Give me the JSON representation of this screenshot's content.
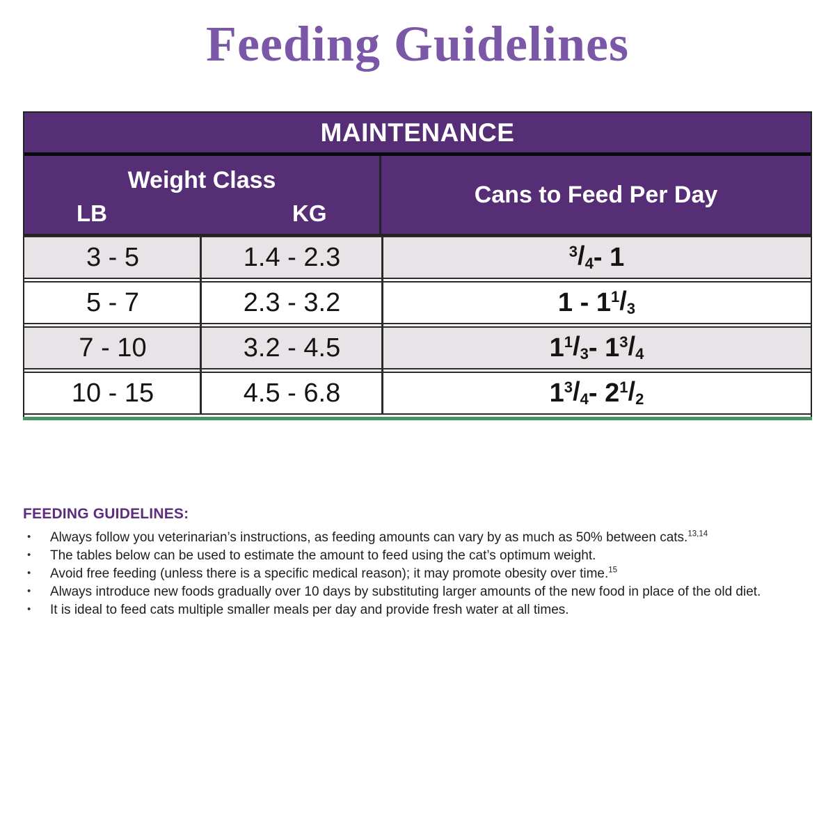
{
  "page": {
    "title": "Feeding Guidelines"
  },
  "colors": {
    "title_purple": "#7b57a8",
    "header_purple": "#552e75",
    "heading_purple": "#5c2d80",
    "row_gray": "#e7e3e7",
    "green_bar": "#469465",
    "border_dark": "#232323"
  },
  "table": {
    "header": "MAINTENANCE",
    "weight_class_label": "Weight Class",
    "lb_label": "LB",
    "kg_label": "KG",
    "cans_label": "Cans to Feed Per Day",
    "rows": [
      {
        "lb": "3 - 5",
        "kg": "1.4 - 2.3",
        "cans": [
          {
            "frac": [
              "3",
              "4"
            ]
          },
          {
            "text": " - 1"
          }
        ]
      },
      {
        "lb": "5 - 7",
        "kg": "2.3 - 3.2",
        "cans": [
          {
            "text": "1 - 1 "
          },
          {
            "frac": [
              "1",
              "3"
            ]
          }
        ]
      },
      {
        "lb": "7 - 10",
        "kg": "3.2 - 4.5",
        "cans": [
          {
            "text": "1 "
          },
          {
            "frac": [
              "1",
              "3"
            ]
          },
          {
            "text": " - 1 "
          },
          {
            "frac": [
              "3",
              "4"
            ]
          }
        ]
      },
      {
        "lb": "10 - 15",
        "kg": "4.5 - 6.8",
        "cans": [
          {
            "text": "1 "
          },
          {
            "frac": [
              "3",
              "4"
            ]
          },
          {
            "text": " - 2 "
          },
          {
            "frac": [
              "1",
              "2"
            ]
          }
        ]
      }
    ]
  },
  "guidelines": {
    "heading": "FEEDING GUIDELINES:",
    "bullet_char": "•",
    "bullets": [
      {
        "text": "Always follow you veterinarian’s instructions, as feeding amounts can vary by as much as 50% between cats.",
        "ref": "13,14"
      },
      {
        "text": "The tables below can be used to estimate the amount to feed using the cat’s optimum weight.",
        "ref": ""
      },
      {
        "text": "Avoid free feeding (unless there is a specific medical reason); it may promote obesity over time.",
        "ref": "15"
      },
      {
        "text": "Always introduce new foods gradually over 10 days by substituting larger amounts of the new food in place of the old diet.",
        "ref": ""
      },
      {
        "text": "It is ideal to feed cats multiple smaller meals per day and provide fresh water at all times.",
        "ref": ""
      }
    ]
  }
}
